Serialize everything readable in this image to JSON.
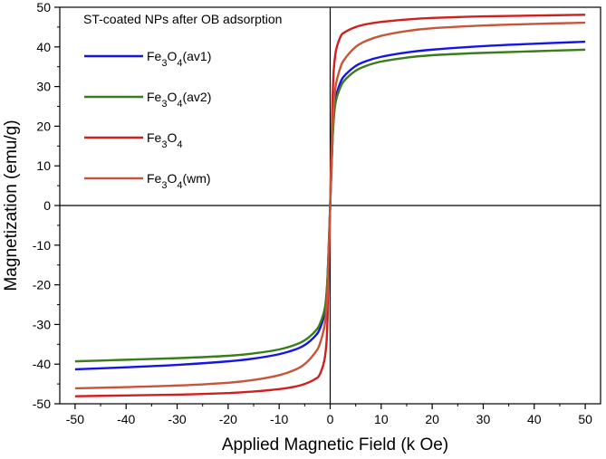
{
  "chart_data": {
    "type": "line",
    "title": "ST-coated NPs after OB adsorption",
    "xlabel": "Applied Magnetic Field (k Oe)",
    "ylabel": "Magnetization (emu/g)",
    "xlim": [
      -53,
      53
    ],
    "ylim": [
      -50,
      50
    ],
    "xticks": [
      -50,
      -40,
      -30,
      -20,
      -10,
      0,
      10,
      20,
      30,
      40,
      50
    ],
    "yticks": [
      -50,
      -40,
      -30,
      -20,
      -10,
      0,
      10,
      20,
      30,
      40,
      50
    ],
    "x": [
      -50,
      -40,
      -30,
      -20,
      -15,
      -10,
      -7,
      -5,
      -3,
      -2,
      -1,
      -0.5,
      0,
      0.5,
      1,
      2,
      3,
      5,
      7,
      10,
      15,
      20,
      30,
      40,
      50
    ],
    "series": [
      {
        "name": "Fe3O4(av1)",
        "label_main": "Fe",
        "label_sub1": "3",
        "label_mid": "O",
        "label_sub2": "4",
        "label_suffix": "(av1)",
        "color": "#1414e6",
        "values": [
          -41.3,
          -40.8,
          -40.2,
          -39.3,
          -38.6,
          -37.5,
          -36.4,
          -35.2,
          -33.0,
          -31.0,
          -26.5,
          -18.0,
          0,
          18.0,
          26.5,
          31.0,
          33.0,
          35.2,
          36.4,
          37.5,
          38.6,
          39.3,
          40.2,
          40.8,
          41.3
        ]
      },
      {
        "name": "Fe3O4(av2)",
        "label_main": "Fe",
        "label_sub1": "3",
        "label_mid": "O",
        "label_sub2": "4",
        "label_suffix": "(av2)",
        "color": "#3a7d1c",
        "values": [
          -39.3,
          -38.9,
          -38.5,
          -37.9,
          -37.3,
          -36.3,
          -35.2,
          -34.0,
          -31.8,
          -29.8,
          -25.5,
          -17.5,
          0,
          17.5,
          25.5,
          29.8,
          31.8,
          34.0,
          35.2,
          36.3,
          37.3,
          37.9,
          38.5,
          38.9,
          39.3
        ]
      },
      {
        "name": "Fe3O4",
        "label_main": "Fe",
        "label_sub1": "3",
        "label_mid": "O",
        "label_sub2": "4",
        "label_suffix": "",
        "color": "#d11f1f",
        "values": [
          -48.1,
          -47.9,
          -47.7,
          -47.3,
          -46.9,
          -46.3,
          -45.7,
          -45.0,
          -43.8,
          -42.5,
          -38.0,
          -28.0,
          0,
          28.0,
          38.0,
          42.5,
          43.8,
          45.0,
          45.7,
          46.3,
          46.9,
          47.3,
          47.7,
          47.9,
          48.1
        ]
      },
      {
        "name": "Fe3O4(wm)",
        "label_main": "Fe",
        "label_sub1": "3",
        "label_mid": "O",
        "label_sub2": "4",
        "label_suffix": "(wm)",
        "color": "#c8553a",
        "values": [
          -46.1,
          -45.8,
          -45.4,
          -44.7,
          -44.0,
          -42.8,
          -41.5,
          -40.0,
          -37.2,
          -34.8,
          -29.5,
          -20.5,
          0,
          20.5,
          29.5,
          34.8,
          37.2,
          40.0,
          41.5,
          42.8,
          44.0,
          44.7,
          45.4,
          45.8,
          46.1
        ]
      }
    ]
  }
}
